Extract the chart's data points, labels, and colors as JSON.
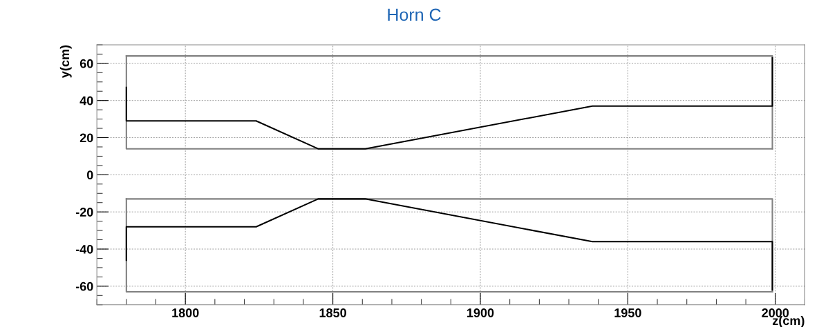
{
  "chart_data": {
    "type": "line",
    "title": "Horn C",
    "xlabel": "z(cm)",
    "ylabel": "y(cm)",
    "series": [
      {
        "color": "#808080",
        "x": [
          1780,
          1999,
          1999
        ],
        "values": [
          64,
          64,
          14
        ]
      },
      {
        "color": "#808080",
        "x": [
          1999,
          1780,
          1780
        ],
        "values": [
          14,
          14,
          64
        ]
      },
      {
        "color": "#000000",
        "x": [
          1780,
          1780,
          1824,
          1845,
          1861,
          1938,
          1999,
          1999
        ],
        "values": [
          47,
          29,
          29,
          14,
          14,
          37,
          37,
          63
        ]
      },
      {
        "color": "#808080",
        "x": [
          1780,
          1999,
          1999
        ],
        "values": [
          -13,
          -13,
          -63
        ]
      },
      {
        "color": "#808080",
        "x": [
          1999,
          1780,
          1780
        ],
        "values": [
          -63,
          -63,
          -13
        ]
      },
      {
        "color": "#000000",
        "x": [
          1780,
          1780,
          1824,
          1845,
          1861,
          1938,
          1999,
          1999
        ],
        "values": [
          -46,
          -28,
          -28,
          -13,
          -13,
          -36,
          -36,
          -62
        ]
      }
    ],
    "xlim": [
      1770,
      2010
    ],
    "ylim": [
      -70,
      70
    ],
    "xticks": [
      1800,
      1850,
      1900,
      1950,
      2000
    ],
    "yticks": [
      -60,
      -40,
      -20,
      0,
      20,
      40,
      60
    ],
    "grid": true,
    "line_style": "solid",
    "marker": "none"
  }
}
